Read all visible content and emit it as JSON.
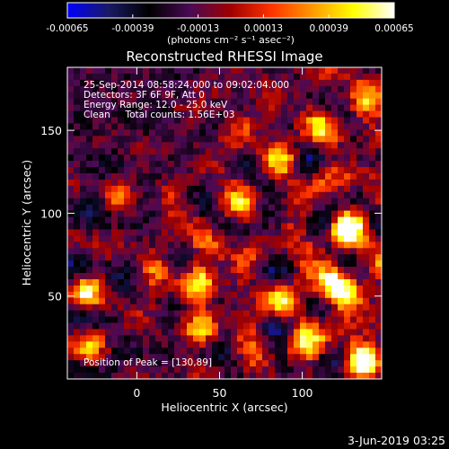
{
  "chart_data": {
    "type": "heatmap",
    "title": "Reconstructed RHESSI Image",
    "xlabel": "Heliocentric X (arcsec)",
    "ylabel": "Heliocentric Y (arcsec)",
    "xlim": [
      -42,
      148
    ],
    "ylim": [
      0,
      188
    ],
    "x_ticks": [
      0,
      50,
      100
    ],
    "y_ticks": [
      50,
      100,
      150
    ],
    "colorbar": {
      "min": -0.00065,
      "max": 0.00065,
      "tick_values": [
        -0.00065,
        -0.00039,
        -0.00013,
        0.00013,
        0.00039,
        0.00065
      ],
      "tick_labels": [
        "-0.00065",
        "-0.00039",
        "-0.00013",
        "0.00013",
        "0.00039",
        "0.00065"
      ],
      "unit_label": "(photons cm⁻² s⁻¹ asec⁻²)",
      "colormap": [
        "#0000ff",
        "#1a1a66",
        "#000000",
        "#4a0a55",
        "#a00000",
        "#ff3300",
        "#ff9900",
        "#ffff00",
        "#ffffff"
      ]
    },
    "info_lines": [
      "25-Sep-2014 08:58:24.000 to 09:02:04.000",
      "Detectors: 3F 6F 9F, Att 0",
      "Energy Range: 12.0 - 25.0 keV",
      "Clean     Total counts: 1.56E+03"
    ],
    "peak_label": "Position of Peak = [130,89]",
    "peak": [
      130,
      89
    ],
    "sources": [
      {
        "x": 128,
        "y": 92,
        "amp": 1.0
      },
      {
        "x": 138,
        "y": 10,
        "amp": 0.95
      },
      {
        "x": -32,
        "y": 52,
        "amp": 0.75
      },
      {
        "x": 38,
        "y": 58,
        "amp": 0.8
      },
      {
        "x": 40,
        "y": 32,
        "amp": 0.7
      },
      {
        "x": 85,
        "y": 48,
        "amp": 0.65
      },
      {
        "x": 118,
        "y": 58,
        "amp": 0.75
      },
      {
        "x": 100,
        "y": 20,
        "amp": 0.55
      },
      {
        "x": 128,
        "y": 50,
        "amp": 0.7
      },
      {
        "x": -30,
        "y": 20,
        "amp": 0.5
      },
      {
        "x": 88,
        "y": 132,
        "amp": 0.5
      },
      {
        "x": 62,
        "y": 105,
        "amp": 0.45
      },
      {
        "x": 10,
        "y": 65,
        "amp": 0.4
      },
      {
        "x": -12,
        "y": 110,
        "amp": 0.35
      },
      {
        "x": 20,
        "y": 110,
        "amp": 0.3
      },
      {
        "x": 62,
        "y": 150,
        "amp": 0.35
      },
      {
        "x": 110,
        "y": 150,
        "amp": 0.45
      },
      {
        "x": 140,
        "y": 170,
        "amp": 0.5
      },
      {
        "x": 45,
        "y": 78,
        "amp": 0.5
      }
    ]
  },
  "footer": {
    "date": "3-Jun-2019 03:25"
  }
}
